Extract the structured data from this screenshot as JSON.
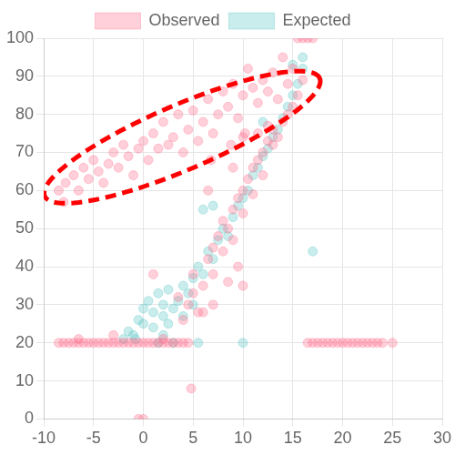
{
  "chart_data": {
    "type": "scatter",
    "xlim": [
      -10,
      30
    ],
    "xticks": [
      -10,
      -5,
      0,
      5,
      10,
      15,
      20,
      25,
      30
    ],
    "ylim": [
      0,
      100
    ],
    "yticks": [
      0,
      10,
      20,
      30,
      40,
      50,
      60,
      70,
      80,
      90,
      100
    ],
    "grid": true,
    "legend": "top",
    "series": [
      {
        "name": "Observed",
        "color": "#ff6384",
        "marker": "circle",
        "x": [
          -8.5,
          -8,
          -7.5,
          -7,
          -6.5,
          -6,
          -5.5,
          -5,
          -4.5,
          -4,
          -3.5,
          -3,
          -2.5,
          -2,
          -1.5,
          -1,
          -0.5,
          0,
          0.5,
          1,
          1.5,
          2,
          2.5,
          3,
          3.5,
          4,
          4.5,
          -6.5,
          -3,
          2,
          16.5,
          17,
          17.5,
          18,
          18.5,
          19,
          19.5,
          20,
          20.5,
          21,
          21.5,
          22,
          22.5,
          23,
          23.5,
          24,
          25,
          -8.5,
          -8,
          -7.8,
          -7,
          -6.5,
          -6,
          -5.5,
          -5,
          -4.5,
          -4,
          -3.5,
          -3,
          -2.5,
          -2,
          -1.5,
          -1,
          -0.5,
          0,
          0.5,
          1,
          1.5,
          2,
          2.5,
          3,
          3.5,
          4,
          4.5,
          5,
          5.5,
          6,
          6.5,
          7,
          7.5,
          8,
          8.5,
          9,
          9.5,
          10,
          10.5,
          11,
          11.5,
          12,
          12.5,
          13,
          13.5,
          14,
          14.5,
          15,
          10.2,
          8.8,
          6.8,
          15.5,
          16,
          16.5,
          17,
          4,
          4.5,
          5,
          5.5,
          5,
          6,
          6.5,
          7,
          7,
          7.5,
          8,
          8,
          8.5,
          9,
          9,
          9.5,
          10,
          10,
          10.5,
          11,
          11,
          11.5,
          12,
          12,
          12.5,
          13,
          13,
          13.5,
          14,
          14.5,
          15,
          15.5,
          16,
          11.5,
          12.5,
          7,
          6,
          8.5,
          9.5,
          10,
          3.5,
          1,
          6.5,
          10,
          9,
          4.8,
          0,
          -0.5
        ],
        "values": [
          20,
          20,
          20,
          20,
          20,
          20,
          20,
          20,
          20,
          20,
          20,
          20,
          20,
          20,
          20,
          20,
          20,
          20,
          20,
          20,
          20,
          20,
          20,
          20,
          20,
          20,
          20,
          21,
          22,
          21,
          20,
          20,
          20,
          20,
          20,
          20,
          20,
          20,
          20,
          20,
          20,
          20,
          20,
          20,
          20,
          20,
          20,
          60,
          57,
          62,
          64,
          60,
          66,
          63,
          68,
          65,
          62,
          67,
          70,
          66,
          72,
          69,
          64,
          71,
          73,
          68,
          75,
          71,
          78,
          72,
          74,
          80,
          70,
          76,
          81,
          73,
          78,
          84,
          75,
          80,
          86,
          82,
          88,
          79,
          85,
          92,
          87,
          83,
          89,
          86,
          91,
          84,
          95,
          88,
          92,
          75,
          72,
          68,
          100,
          100,
          100,
          100,
          26,
          30,
          33,
          28,
          38,
          35,
          42,
          38,
          45,
          48,
          44,
          52,
          50,
          55,
          47,
          58,
          60,
          54,
          63,
          66,
          59,
          68,
          70,
          64,
          73,
          72,
          76,
          74,
          78,
          80,
          82,
          85,
          89,
          75,
          77,
          30,
          28,
          36,
          40,
          35,
          32,
          38,
          60,
          74,
          66,
          8,
          0,
          0
        ]
      },
      {
        "name": "Expected",
        "color": "#4bc0c0",
        "marker": "circle",
        "x": [
          -1,
          -0.5,
          0,
          0,
          0.5,
          1,
          1,
          1.5,
          2,
          2,
          2.5,
          2.5,
          3,
          3.5,
          4,
          4,
          4.5,
          5,
          -2,
          -1.5,
          5,
          5.5,
          6,
          6.5,
          7,
          7.5,
          8,
          8.5,
          9,
          9.5,
          10,
          10.5,
          11,
          11.5,
          12,
          12.5,
          13,
          13.5,
          14,
          14.5,
          15,
          15.5,
          16,
          16,
          15,
          17,
          10,
          5.5,
          7,
          6,
          12,
          2,
          -0.8,
          1.5,
          3
        ],
        "values": [
          22,
          26,
          25,
          29,
          31,
          24,
          28,
          33,
          27,
          30,
          25,
          34,
          29,
          31,
          27,
          35,
          33,
          30,
          21,
          23,
          37,
          40,
          38,
          44,
          42,
          47,
          50,
          48,
          53,
          56,
          58,
          60,
          64,
          66,
          69,
          71,
          74,
          76,
          79,
          82,
          85,
          88,
          92,
          95,
          93,
          44,
          20,
          20,
          56,
          55,
          78,
          22,
          21,
          20,
          20
        ]
      }
    ],
    "highlight": {
      "center": [
        3.9,
        74
      ],
      "axis1": [
        13.8,
        15.5
      ],
      "axis2": [
        1.3,
        -7.8
      ],
      "color": "#ff0000",
      "line_style": "dashed"
    }
  }
}
